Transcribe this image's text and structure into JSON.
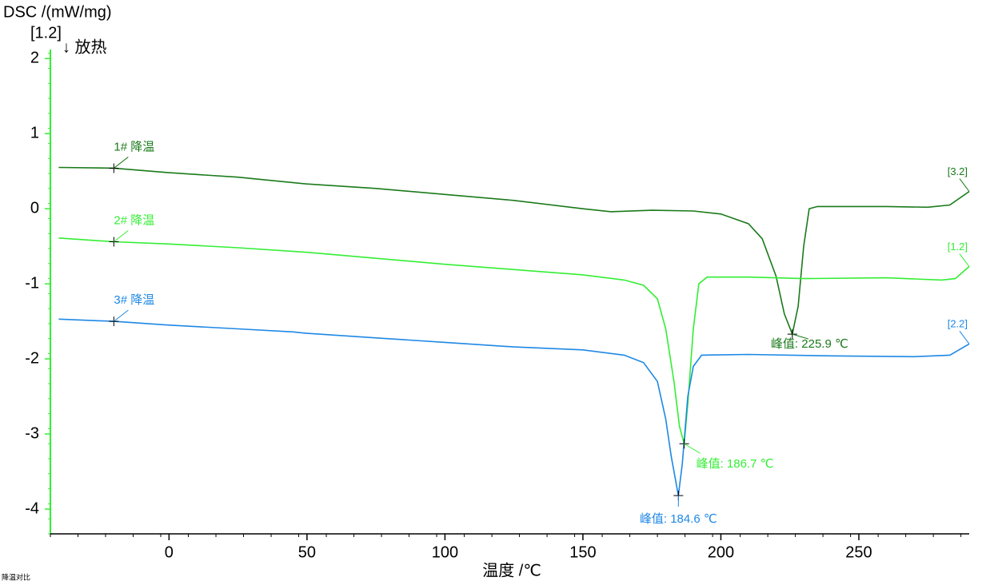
{
  "chart_data": {
    "type": "line",
    "y_label": "DSC /(mW/mg)",
    "x_label": "温度 /℃",
    "y_axis_tag": "[1.2]",
    "direction_note": "↓ 放热",
    "footer": "降温对比",
    "xlim": [
      -43,
      290
    ],
    "ylim": [
      -4.33,
      2.12
    ],
    "xticks": [
      0,
      50,
      100,
      150,
      200,
      250
    ],
    "yticks": [
      -4,
      -3,
      -2,
      -1,
      0,
      1,
      2
    ],
    "series": [
      {
        "name": "1# 降温",
        "color": "#1a7a1a",
        "tag": "[3.2]",
        "x": [
          -40,
          -20,
          0,
          25,
          50,
          75,
          100,
          125,
          150,
          160,
          175,
          190,
          200,
          210,
          215,
          220,
          223,
          225.9,
          228,
          230,
          232,
          235,
          260,
          275,
          283,
          290
        ],
        "values": [
          0.55,
          0.54,
          0.48,
          0.42,
          0.33,
          0.27,
          0.19,
          0.11,
          0.0,
          -0.04,
          -0.02,
          -0.03,
          -0.07,
          -0.2,
          -0.4,
          -0.9,
          -1.4,
          -1.67,
          -1.3,
          -0.5,
          0.0,
          0.03,
          0.03,
          0.02,
          0.05,
          0.23
        ]
      },
      {
        "name": "2# 降温",
        "color": "#33ee33",
        "tag": "[1.2]",
        "x": [
          -40,
          -20,
          0,
          25,
          50,
          75,
          100,
          125,
          150,
          165,
          172,
          177,
          180,
          183,
          185,
          186.7,
          188,
          190,
          192,
          195,
          210,
          230,
          260,
          280,
          285,
          290
        ],
        "values": [
          -0.39,
          -0.44,
          -0.47,
          -0.52,
          -0.58,
          -0.66,
          -0.74,
          -0.81,
          -0.88,
          -0.95,
          -1.02,
          -1.2,
          -1.6,
          -2.3,
          -2.9,
          -3.13,
          -2.6,
          -1.6,
          -1.0,
          -0.91,
          -0.91,
          -0.93,
          -0.92,
          -0.95,
          -0.93,
          -0.77
        ]
      },
      {
        "name": "3# 降温",
        "color": "#1e88e5",
        "tag": "[2.2]",
        "x": [
          -40,
          -20,
          0,
          25,
          45,
          50,
          75,
          100,
          125,
          150,
          165,
          172,
          177,
          180,
          182,
          184.6,
          186,
          188,
          190,
          193,
          210,
          240,
          270,
          283,
          290
        ],
        "values": [
          -1.47,
          -1.5,
          -1.55,
          -1.6,
          -1.64,
          -1.66,
          -1.72,
          -1.78,
          -1.84,
          -1.88,
          -1.95,
          -2.05,
          -2.3,
          -2.8,
          -3.3,
          -3.82,
          -3.4,
          -2.5,
          -2.1,
          -1.95,
          -1.94,
          -1.96,
          -1.97,
          -1.95,
          -1.8
        ]
      }
    ],
    "annotations": [
      {
        "text": "峰值: 225.9 ℃",
        "x": 225.9,
        "y": -1.67,
        "color": "#1a7a1a"
      },
      {
        "text": "峰值: 186.7 ℃",
        "x": 186.7,
        "y": -3.13,
        "color": "#33ee33"
      },
      {
        "text": "峰值: 184.6 ℃",
        "x": 184.6,
        "y": -3.82,
        "color": "#1e88e5"
      }
    ]
  }
}
